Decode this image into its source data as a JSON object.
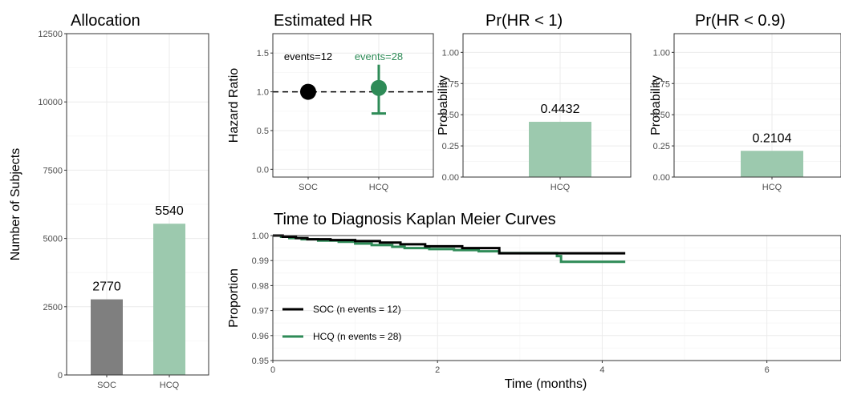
{
  "chart_data": [
    {
      "id": "allocation",
      "type": "bar",
      "title": "Allocation",
      "ylabel": "Number of Subjects",
      "xlabel": "",
      "categories": [
        "SOC",
        "HCQ"
      ],
      "values": [
        2770,
        5540
      ],
      "value_labels": [
        "2770",
        "5540"
      ],
      "ylim": [
        0,
        12500
      ],
      "yticks": [
        0,
        2500,
        5000,
        7500,
        10000,
        12500
      ],
      "ytick_labels": [
        "0",
        "2500",
        "5000",
        "7500",
        "10000",
        "12500"
      ],
      "colors": [
        "#7f7f7f",
        "#9cc9ae"
      ],
      "grid": true
    },
    {
      "id": "estimated-hr",
      "type": "scatter",
      "title": "Estimated HR",
      "ylabel": "Hazard Ratio",
      "xlabel": "",
      "categories": [
        "SOC",
        "HCQ"
      ],
      "points": [
        {
          "category": "SOC",
          "y": 1.0,
          "lower": null,
          "upper": null,
          "color": "#000000"
        },
        {
          "category": "HCQ",
          "y": 1.05,
          "lower": 0.72,
          "upper": 1.35,
          "color": "#2e8b57"
        }
      ],
      "annotations": [
        {
          "category": "SOC",
          "text": "events=12",
          "color": "#000000"
        },
        {
          "category": "HCQ",
          "text": "events=28",
          "color": "#2e8b57"
        }
      ],
      "reference_line": 1.0,
      "ylim": [
        -0.1,
        1.75
      ],
      "yticks": [
        0,
        0.5,
        1,
        1.5
      ],
      "ytick_labels": [
        "0.0",
        "0.5",
        "1.0",
        "1.5"
      ],
      "grid": true
    },
    {
      "id": "pr-hr-lt-1",
      "type": "bar",
      "title": "Pr(HR < 1)",
      "ylabel": "Probability",
      "xlabel": "",
      "categories": [
        "HCQ"
      ],
      "values": [
        0.4432
      ],
      "value_labels": [
        "0.4432"
      ],
      "ylim": [
        0,
        1.15
      ],
      "yticks": [
        0,
        0.25,
        0.5,
        0.75,
        1
      ],
      "ytick_labels": [
        "0.00",
        "0.25",
        "0.50",
        "0.75",
        "1.00"
      ],
      "colors": [
        "#9cc9ae"
      ],
      "grid": true
    },
    {
      "id": "pr-hr-lt-09",
      "type": "bar",
      "title": "Pr(HR < 0.9)",
      "ylabel": "Probability",
      "xlabel": "",
      "categories": [
        "HCQ"
      ],
      "values": [
        0.2104
      ],
      "value_labels": [
        "0.2104"
      ],
      "ylim": [
        0,
        1.15
      ],
      "yticks": [
        0,
        0.25,
        0.5,
        0.75,
        1
      ],
      "ytick_labels": [
        "0.00",
        "0.25",
        "0.50",
        "0.75",
        "1.00"
      ],
      "colors": [
        "#9cc9ae"
      ],
      "grid": true
    },
    {
      "id": "km",
      "type": "line",
      "title": "Time to Diagnosis Kaplan Meier Curves",
      "xlabel": "Time (months)",
      "ylabel": "Proportion",
      "xlim": [
        0,
        6.9
      ],
      "ylim": [
        0.95,
        1.0
      ],
      "xticks": [
        0,
        2,
        4,
        6
      ],
      "xtick_labels": [
        "0",
        "2",
        "4",
        "6"
      ],
      "yticks": [
        0.95,
        0.96,
        0.97,
        0.98,
        0.99,
        1.0
      ],
      "ytick_labels": [
        "0.95",
        "0.96",
        "0.97",
        "0.98",
        "0.99",
        "1.00"
      ],
      "legend_position": "bottom-left",
      "grid": true,
      "series": [
        {
          "name": "SOC (n events = 12)",
          "color": "#000000",
          "step": true,
          "x": [
            0,
            0.12,
            0.28,
            0.42,
            0.7,
            1.0,
            1.3,
            1.55,
            1.85,
            2.3,
            2.75,
            4.28
          ],
          "y": [
            1.0,
            0.9995,
            0.999,
            0.9985,
            0.9982,
            0.9978,
            0.9972,
            0.9965,
            0.9957,
            0.995,
            0.9929,
            0.9929
          ]
        },
        {
          "name": "HCQ (n events = 28)",
          "color": "#2e8b57",
          "step": true,
          "x": [
            0,
            0.1,
            0.2,
            0.35,
            0.55,
            0.8,
            1.0,
            1.2,
            1.45,
            1.6,
            1.9,
            2.2,
            2.5,
            2.75,
            3.45,
            3.5,
            4.28
          ],
          "y": [
            1.0,
            0.9995,
            0.999,
            0.9985,
            0.998,
            0.9975,
            0.9968,
            0.9962,
            0.9955,
            0.995,
            0.9946,
            0.9942,
            0.9937,
            0.993,
            0.9918,
            0.9895,
            0.9895
          ]
        }
      ]
    }
  ]
}
